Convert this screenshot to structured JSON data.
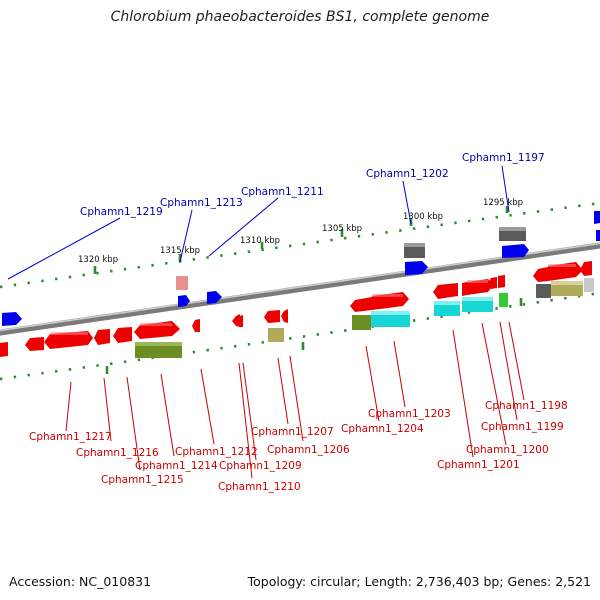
{
  "title": "Chlorobium phaeobacteroides BS1, complete genome",
  "footer": {
    "accession": "Accession: NC_010831",
    "topology": "Topology: circular; Length: 2,736,403 bp; Genes: 2,521"
  },
  "colors": {
    "backbone": "#8a8a8a",
    "tick": "#2e8b2e",
    "gene_red": "#ee0000",
    "gene_blue": "#0000ee",
    "label_blue": "#0000aa",
    "label_red": "#cc0000",
    "cog_green": "#6b8e23",
    "cog_cyan": "#19d6d6",
    "cog_gray": "#5a5a5a",
    "cog_khaki": "#b0aa5a",
    "cog_pink": "#e89090",
    "cog_lime": "#33cc33"
  },
  "scale_labels": [
    "1295 kbp",
    "1300 kbp",
    "1305 kbp",
    "1310 kbp",
    "1315 kbp",
    "1320 kbp"
  ],
  "top_gene_labels": [
    "Cphamn1_1197",
    "Cphamn1_1202",
    "Cphamn1_1211",
    "Cphamn1_1213",
    "Cphamn1_1219"
  ],
  "bottom_gene_labels": [
    "Cphamn1_1198",
    "Cphamn1_1199",
    "Cphamn1_1200",
    "Cphamn1_1201",
    "Cphamn1_1203",
    "Cphamn1_1204",
    "Cphamn1_1206",
    "Cphamn1_1207",
    "Cphamn1_1209",
    "Cphamn1_1210",
    "Cphamn1_1212",
    "Cphamn1_1214",
    "Cphamn1_1215",
    "Cphamn1_1216",
    "Cphamn1_1217"
  ],
  "icons": {
    "gene_arrow": "gene-arrow-icon"
  }
}
